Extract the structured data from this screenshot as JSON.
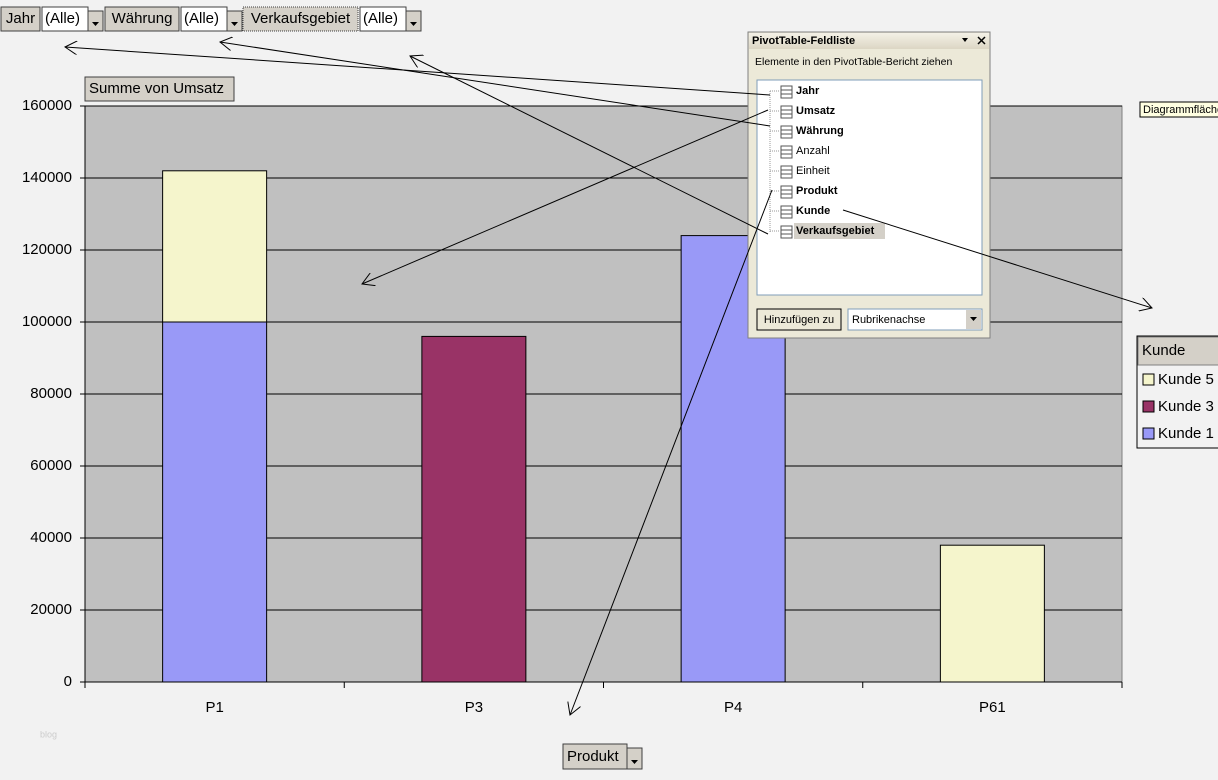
{
  "page_fields": [
    {
      "label": "Jahr",
      "value": "(Alle)"
    },
    {
      "label": "Währung",
      "value": "(Alle)"
    },
    {
      "label": "Verkaufsgebiet",
      "value": "(Alle)"
    }
  ],
  "data_field": "Summe von Umsatz",
  "category_field": "Produkt",
  "chart_area_tooltip": "Diagrammfläche",
  "watermark": "blog",
  "field_list": {
    "title": "PivotTable-Feldliste",
    "instruction": "Elemente in den PivotTable-Bericht ziehen",
    "fields": [
      {
        "name": "Jahr",
        "bold": true
      },
      {
        "name": "Umsatz",
        "bold": true
      },
      {
        "name": "Währung",
        "bold": true
      },
      {
        "name": "Anzahl",
        "bold": false
      },
      {
        "name": "Einheit",
        "bold": false
      },
      {
        "name": "Produkt",
        "bold": true
      },
      {
        "name": "Kunde",
        "bold": true
      },
      {
        "name": "Verkaufsgebiet",
        "bold": true,
        "selected": true
      }
    ],
    "add_button": "Hinzufügen zu",
    "target": "Rubrikenachse"
  },
  "chart_data": {
    "type": "bar",
    "stacked": true,
    "categories": [
      "P1",
      "P3",
      "P4",
      "P61"
    ],
    "series": [
      {
        "name": "Kunde 5",
        "color": "#f5f5cc",
        "values": [
          42000,
          null,
          null,
          38000
        ]
      },
      {
        "name": "Kunde 3",
        "color": "#993366",
        "values": [
          null,
          96000,
          null,
          null
        ]
      },
      {
        "name": "Kunde 1",
        "color": "#9999f7",
        "values": [
          100000,
          null,
          124000,
          null
        ]
      }
    ],
    "ylim": [
      0,
      160000
    ],
    "yticks": [
      0,
      20000,
      40000,
      60000,
      80000,
      100000,
      120000,
      140000,
      160000
    ],
    "grid": true,
    "legend": "right",
    "legend_title": "Kunde"
  }
}
